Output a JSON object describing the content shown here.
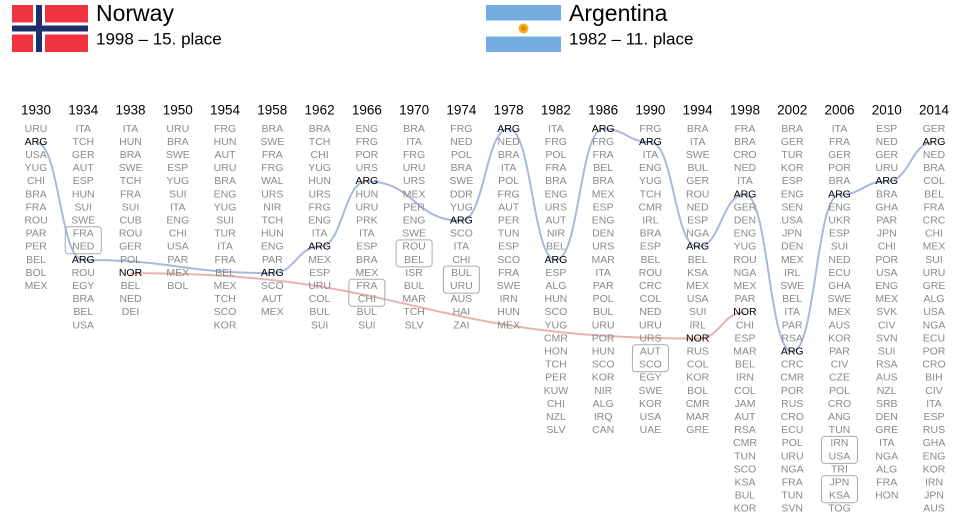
{
  "header": {
    "teams": [
      {
        "name": "Norway",
        "best": "1998 – 15. place",
        "code": "NOR",
        "line_color": "#e8b4b0"
      },
      {
        "name": "Argentina",
        "best": "1982 – 11. place",
        "code": "ARG",
        "line_color": "#a9b8dc"
      }
    ]
  },
  "columns": [
    {
      "year": "1930",
      "teams": [
        "URU",
        "ARG",
        "USA",
        "YUG",
        "CHI",
        "BRA",
        "FRA",
        "ROU",
        "PAR",
        "PER",
        "BEL",
        "BOL",
        "MEX"
      ]
    },
    {
      "year": "1934",
      "teams": [
        "ITA",
        "TCH",
        "GER",
        "AUT",
        "ESP",
        "HUN",
        "SUI",
        "SWE",
        "FRA",
        "NED",
        "ARG",
        "ROU",
        "EGY",
        "BRA",
        "BEL",
        "USA"
      ]
    },
    {
      "year": "1938",
      "teams": [
        "ITA",
        "HUN",
        "BRA",
        "SWE",
        "TCH",
        "FRA",
        "SUI",
        "CUB",
        "ROU",
        "GER",
        "POL",
        "NOR",
        "BEL",
        "NED",
        "DEI"
      ]
    },
    {
      "year": "1950",
      "teams": [
        "URU",
        "BRA",
        "SWE",
        "ESP",
        "YUG",
        "SUI",
        "ITA",
        "ENG",
        "CHI",
        "USA",
        "PAR",
        "MEX",
        "BOL"
      ]
    },
    {
      "year": "1954",
      "teams": [
        "FRG",
        "HUN",
        "AUT",
        "URU",
        "BRA",
        "ENG",
        "YUG",
        "SUI",
        "TUR",
        "ITA",
        "FRA",
        "BEL",
        "MEX",
        "TCH",
        "SCO",
        "KOR"
      ]
    },
    {
      "year": "1958",
      "teams": [
        "BRA",
        "SWE",
        "FRA",
        "FRG",
        "WAL",
        "URS",
        "NIR",
        "TCH",
        "HUN",
        "ENG",
        "PAR",
        "ARG",
        "SCO",
        "AUT",
        "MEX"
      ]
    },
    {
      "year": "1962",
      "teams": [
        "BRA",
        "TCH",
        "CHI",
        "YUG",
        "HUN",
        "URS",
        "FRG",
        "ENG",
        "ITA",
        "ARG",
        "MEX",
        "ESP",
        "URU",
        "COL",
        "BUL",
        "SUI"
      ]
    },
    {
      "year": "1966",
      "teams": [
        "ENG",
        "FRG",
        "POR",
        "URS",
        "ARG",
        "HUN",
        "URU",
        "PRK",
        "ITA",
        "ESP",
        "BRA",
        "MEX",
        "FRA",
        "CHI",
        "BUL",
        "SUI"
      ]
    },
    {
      "year": "1970",
      "teams": [
        "BRA",
        "ITA",
        "FRG",
        "URU",
        "URS",
        "MEX",
        "PER",
        "ENG",
        "SWE",
        "ROU",
        "BEL",
        "ISR",
        "BUL",
        "MAR",
        "TCH",
        "SLV"
      ]
    },
    {
      "year": "1974",
      "teams": [
        "FRG",
        "NED",
        "POL",
        "BRA",
        "SWE",
        "DDR",
        "YUG",
        "ARG",
        "SCO",
        "ITA",
        "CHI",
        "BUL",
        "URU",
        "AUS",
        "HAI",
        "ZAI"
      ]
    },
    {
      "year": "1978",
      "teams": [
        "ARG",
        "NED",
        "BRA",
        "ITA",
        "POL",
        "FRG",
        "AUT",
        "PER",
        "TUN",
        "ESP",
        "SCO",
        "FRA",
        "SWE",
        "IRN",
        "HUN",
        "MEX"
      ]
    },
    {
      "year": "1982",
      "teams": [
        "ITA",
        "FRG",
        "POL",
        "FRA",
        "BRA",
        "ENG",
        "URS",
        "AUT",
        "NIR",
        "BEL",
        "ARG",
        "ESP",
        "ALG",
        "HUN",
        "SCO",
        "YUG",
        "CMR",
        "HON",
        "TCH",
        "PER",
        "KUW",
        "CHI",
        "NZL",
        "SLV"
      ]
    },
    {
      "year": "1986",
      "teams": [
        "ARG",
        "FRG",
        "FRA",
        "BEL",
        "BRA",
        "MEX",
        "ESP",
        "ENG",
        "DEN",
        "URS",
        "MAR",
        "ITA",
        "PAR",
        "POL",
        "BUL",
        "URU",
        "POR",
        "HUN",
        "SCO",
        "KOR",
        "NIR",
        "ALG",
        "IRQ",
        "CAN"
      ]
    },
    {
      "year": "1990",
      "teams": [
        "FRG",
        "ARG",
        "ITA",
        "ENG",
        "YUG",
        "TCH",
        "CMR",
        "IRL",
        "BRA",
        "ESP",
        "BEL",
        "ROU",
        "CRC",
        "COL",
        "NED",
        "URU",
        "URS",
        "AUT",
        "SCO",
        "EGY",
        "SWE",
        "KOR",
        "USA",
        "UAE"
      ]
    },
    {
      "year": "1994",
      "teams": [
        "BRA",
        "ITA",
        "SWE",
        "BUL",
        "GER",
        "ROU",
        "NED",
        "ESP",
        "NGA",
        "ARG",
        "BEL",
        "KSA",
        "MEX",
        "USA",
        "SUI",
        "IRL",
        "NOR",
        "RUS",
        "COL",
        "KOR",
        "BOL",
        "CMR",
        "MAR",
        "GRE"
      ]
    },
    {
      "year": "1998",
      "teams": [
        "FRA",
        "BRA",
        "CRO",
        "NED",
        "ITA",
        "ARG",
        "GER",
        "DEN",
        "ENG",
        "YUG",
        "ROU",
        "NGA",
        "MEX",
        "PAR",
        "NOR",
        "CHI",
        "ESP",
        "MAR",
        "BEL",
        "IRN",
        "COL",
        "JAM",
        "AUT",
        "RSA",
        "CMR",
        "TUN",
        "SCO",
        "KSA",
        "BUL",
        "KOR"
      ]
    },
    {
      "year": "2002",
      "teams": [
        "BRA",
        "GER",
        "TUR",
        "KOR",
        "ESP",
        "ENG",
        "SEN",
        "USA",
        "JPN",
        "DEN",
        "MEX",
        "IRL",
        "SWE",
        "BEL",
        "ITA",
        "PAR",
        "RSA",
        "ARG",
        "CRC",
        "CMR",
        "POR",
        "RUS",
        "CRO",
        "ECU",
        "POL",
        "URU",
        "NGA",
        "FRA",
        "TUN",
        "SVN"
      ]
    },
    {
      "year": "2006",
      "teams": [
        "ITA",
        "FRA",
        "GER",
        "POR",
        "BRA",
        "ARG",
        "ENG",
        "UKR",
        "ESP",
        "SUI",
        "NED",
        "ECU",
        "GHA",
        "SWE",
        "MEX",
        "AUS",
        "KOR",
        "PAR",
        "CIV",
        "CZE",
        "POL",
        "CRO",
        "ANG",
        "TUN",
        "IRN",
        "USA",
        "TRI",
        "JPN",
        "KSA",
        "TOG"
      ]
    },
    {
      "year": "2010",
      "teams": [
        "ESP",
        "NED",
        "GER",
        "URU",
        "ARG",
        "BRA",
        "GHA",
        "PAR",
        "JPN",
        "CHI",
        "POR",
        "USA",
        "ENG",
        "MEX",
        "SVK",
        "CIV",
        "SVN",
        "SUI",
        "RSA",
        "AUS",
        "NZL",
        "SRB",
        "DEN",
        "GRE",
        "ITA",
        "NGA",
        "ALG",
        "FRA",
        "HON"
      ]
    },
    {
      "year": "2014",
      "teams": [
        "GER",
        "ARG",
        "NED",
        "BRA",
        "COL",
        "BEL",
        "FRA",
        "CRC",
        "CHI",
        "MEX",
        "SUI",
        "URU",
        "GRE",
        "ALG",
        "USA",
        "NGA",
        "ECU",
        "POR",
        "CRO",
        "BIH",
        "CIV",
        "ITA",
        "ESP",
        "RUS",
        "GHA",
        "ENG",
        "KOR",
        "IRN",
        "JPN",
        "AUS"
      ]
    }
  ]
}
